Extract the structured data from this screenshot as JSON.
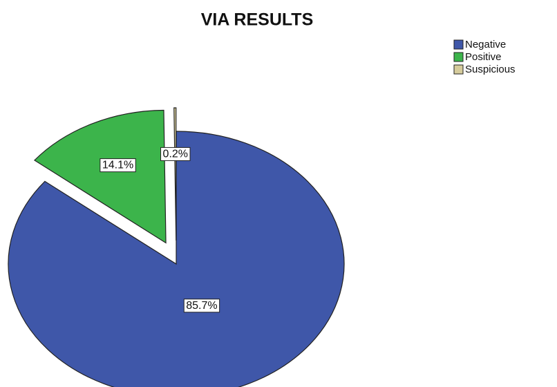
{
  "chart_data": {
    "type": "pie",
    "title": "VIA RESULTS",
    "categories": [
      "Negative",
      "Positive",
      "Suspicious"
    ],
    "values": [
      85.7,
      14.1,
      0.2
    ],
    "value_labels": [
      "85.7%",
      "14.1%",
      "0.2%"
    ],
    "colors": [
      "#3f57a9",
      "#3cb44b",
      "#d6cc9c"
    ],
    "legend": "top-right"
  }
}
